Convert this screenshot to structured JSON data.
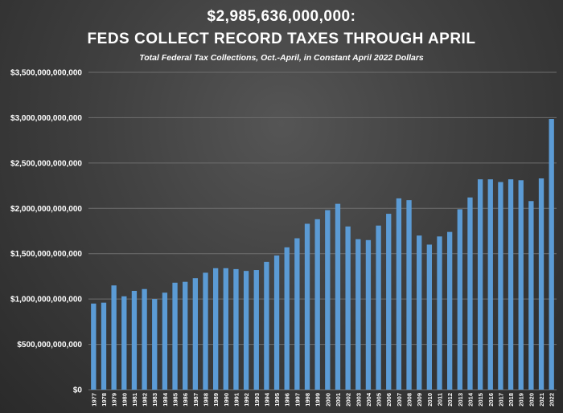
{
  "chart_data": {
    "type": "bar",
    "title_line1": "$2,985,636,000,000:",
    "title_line2": "FEDS COLLECT RECORD TAXES THROUGH APRIL",
    "subtitle": "Total Federal Tax Collections, Oct.-April, in Constant April 2022 Dollars",
    "xlabel": "",
    "ylabel": "",
    "ylim": [
      0,
      3500000000000
    ],
    "yticks": [
      0,
      500000000000,
      1000000000000,
      1500000000000,
      2000000000000,
      2500000000000,
      3000000000000,
      3500000000000
    ],
    "ytick_labels": [
      "$0",
      "$500,000,000,000",
      "$1,000,000,000,000",
      "$1,500,000,000,000",
      "$2,000,000,000,000",
      "$2,500,000,000,000",
      "$3,000,000,000,000",
      "$3,500,000,000,000"
    ],
    "grid": true,
    "legend": "none",
    "bar_color": "#5b9bd5",
    "categories": [
      "1977",
      "1978",
      "1979",
      "1980",
      "1981",
      "1982",
      "1983",
      "1984",
      "1985",
      "1986",
      "1987",
      "1988",
      "1989",
      "1990",
      "1991",
      "1992",
      "1993",
      "1994",
      "1995",
      "1996",
      "1997",
      "1998",
      "1999",
      "2000",
      "2001",
      "2002",
      "2003",
      "2004",
      "2005",
      "2006",
      "2007",
      "2008",
      "2009",
      "2010",
      "2011",
      "2012",
      "2013",
      "2014",
      "2015",
      "2016",
      "2017",
      "2018",
      "2019",
      "2020",
      "2021",
      "2022"
    ],
    "values": [
      950000000000,
      960000000000,
      1150000000000,
      1030000000000,
      1090000000000,
      1110000000000,
      1000000000000,
      1070000000000,
      1180000000000,
      1190000000000,
      1230000000000,
      1290000000000,
      1340000000000,
      1340000000000,
      1330000000000,
      1310000000000,
      1320000000000,
      1410000000000,
      1480000000000,
      1570000000000,
      1670000000000,
      1830000000000,
      1880000000000,
      1980000000000,
      2050000000000,
      1800000000000,
      1660000000000,
      1650000000000,
      1810000000000,
      1940000000000,
      2110000000000,
      2090000000000,
      1700000000000,
      1600000000000,
      1690000000000,
      1740000000000,
      1990000000000,
      2120000000000,
      2320000000000,
      2320000000000,
      2290000000000,
      2320000000000,
      2310000000000,
      2080000000000,
      2330000000000,
      2985636000000
    ]
  }
}
